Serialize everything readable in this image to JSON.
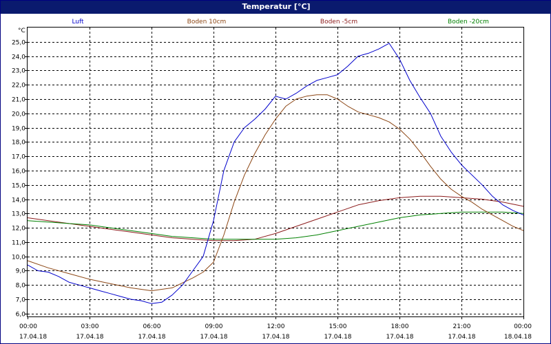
{
  "window": {
    "title": "Temperatur [°C]"
  },
  "chart_data": {
    "type": "line",
    "title": "Temperatur [°C]",
    "ylabel": "°C",
    "ylim": [
      5.8,
      26.0
    ],
    "xlim": [
      "17.04.18 00:00",
      "18.04.18 00:00"
    ],
    "grid": true,
    "legend_position": "top",
    "y_ticks": [
      "6,0",
      "7,0",
      "8,0",
      "9,0",
      "10,0",
      "11,0",
      "12,0",
      "13,0",
      "14,0",
      "15,0",
      "16,0",
      "17,0",
      "18,0",
      "19,0",
      "20,0",
      "21,0",
      "22,0",
      "23,0",
      "24,0",
      "25,0"
    ],
    "x_ticks": [
      {
        "time": "00:00",
        "date": "17.04.18"
      },
      {
        "time": "03:00",
        "date": "17.04.18"
      },
      {
        "time": "06:00",
        "date": "17.04.18"
      },
      {
        "time": "09:00",
        "date": "17.04.18"
      },
      {
        "time": "12:00",
        "date": "17.04.18"
      },
      {
        "time": "15:00",
        "date": "17.04.18"
      },
      {
        "time": "18:00",
        "date": "17.04.18"
      },
      {
        "time": "21:00",
        "date": "17.04.18"
      },
      {
        "time": "00:00",
        "date": "18.04.18"
      }
    ],
    "series": [
      {
        "name": "Luft",
        "color": "#0000cc",
        "x": [
          "00:00",
          "00:30",
          "01:00",
          "01:30",
          "02:00",
          "02:30",
          "03:00",
          "03:30",
          "04:00",
          "04:30",
          "05:00",
          "05:30",
          "06:00",
          "06:30",
          "07:00",
          "07:30",
          "08:00",
          "08:30",
          "09:00",
          "09:30",
          "10:00",
          "10:30",
          "11:00",
          "11:30",
          "12:00",
          "12:30",
          "13:00",
          "13:30",
          "14:00",
          "14:30",
          "15:00",
          "15:30",
          "16:00",
          "16:30",
          "17:00",
          "17:30",
          "18:00",
          "18:30",
          "19:00",
          "19:30",
          "20:00",
          "20:30",
          "21:00",
          "21:30",
          "22:00",
          "22:30",
          "23:00",
          "23:30",
          "24:00"
        ],
        "values": [
          9.4,
          9.0,
          8.9,
          8.6,
          8.2,
          8.0,
          7.8,
          7.6,
          7.4,
          7.2,
          7.0,
          6.9,
          6.7,
          6.8,
          7.3,
          8.0,
          9.0,
          10.0,
          12.5,
          16.0,
          18.0,
          19.0,
          19.6,
          20.3,
          21.2,
          21.0,
          21.4,
          21.9,
          22.3,
          22.5,
          22.7,
          23.3,
          24.0,
          24.2,
          24.5,
          24.9,
          23.8,
          22.3,
          21.1,
          20.0,
          18.4,
          17.3,
          16.4,
          15.7,
          15.0,
          14.2,
          13.6,
          13.2,
          12.9
        ]
      },
      {
        "name": "Boden 10cm",
        "color": "#8b4513",
        "x": [
          "00:00",
          "01:00",
          "02:00",
          "03:00",
          "04:00",
          "05:00",
          "06:00",
          "07:00",
          "08:00",
          "08:30",
          "09:00",
          "09:30",
          "10:00",
          "10:30",
          "11:00",
          "11:30",
          "12:00",
          "12:30",
          "13:00",
          "13:30",
          "14:00",
          "14:30",
          "15:00",
          "15:30",
          "16:00",
          "16:30",
          "17:00",
          "17:30",
          "18:00",
          "18:30",
          "19:00",
          "19:30",
          "20:00",
          "20:30",
          "21:00",
          "21:30",
          "22:00",
          "22:30",
          "23:00",
          "23:30",
          "24:00"
        ],
        "values": [
          9.7,
          9.2,
          8.8,
          8.4,
          8.1,
          7.8,
          7.6,
          7.8,
          8.5,
          8.9,
          9.6,
          11.5,
          13.8,
          15.7,
          17.2,
          18.5,
          19.6,
          20.5,
          21.0,
          21.2,
          21.3,
          21.3,
          21.0,
          20.5,
          20.1,
          19.9,
          19.7,
          19.4,
          18.9,
          18.2,
          17.3,
          16.3,
          15.4,
          14.7,
          14.2,
          13.8,
          13.3,
          12.9,
          12.5,
          12.1,
          11.8
        ]
      },
      {
        "name": "Boden -5cm",
        "color": "#8b1a1a",
        "x": [
          "00:00",
          "01:00",
          "02:00",
          "03:00",
          "04:00",
          "05:00",
          "06:00",
          "07:00",
          "08:00",
          "09:00",
          "10:00",
          "11:00",
          "12:00",
          "13:00",
          "14:00",
          "15:00",
          "16:00",
          "17:00",
          "18:00",
          "19:00",
          "20:00",
          "21:00",
          "22:00",
          "23:00",
          "24:00"
        ],
        "values": [
          12.7,
          12.5,
          12.3,
          12.1,
          11.9,
          11.7,
          11.5,
          11.3,
          11.2,
          11.1,
          11.1,
          11.2,
          11.6,
          12.1,
          12.6,
          13.1,
          13.6,
          13.9,
          14.1,
          14.2,
          14.2,
          14.1,
          14.0,
          13.8,
          13.5
        ]
      },
      {
        "name": "Boden -20cm",
        "color": "#008000",
        "x": [
          "00:00",
          "01:00",
          "02:00",
          "03:00",
          "04:00",
          "05:00",
          "06:00",
          "07:00",
          "08:00",
          "09:00",
          "10:00",
          "11:00",
          "12:00",
          "13:00",
          "14:00",
          "15:00",
          "16:00",
          "17:00",
          "18:00",
          "19:00",
          "20:00",
          "21:00",
          "22:00",
          "23:00",
          "24:00"
        ],
        "values": [
          12.5,
          12.4,
          12.3,
          12.2,
          12.0,
          11.8,
          11.6,
          11.4,
          11.3,
          11.2,
          11.2,
          11.2,
          11.2,
          11.3,
          11.5,
          11.8,
          12.1,
          12.4,
          12.7,
          12.9,
          13.0,
          13.1,
          13.1,
          13.1,
          13.0
        ]
      }
    ]
  }
}
